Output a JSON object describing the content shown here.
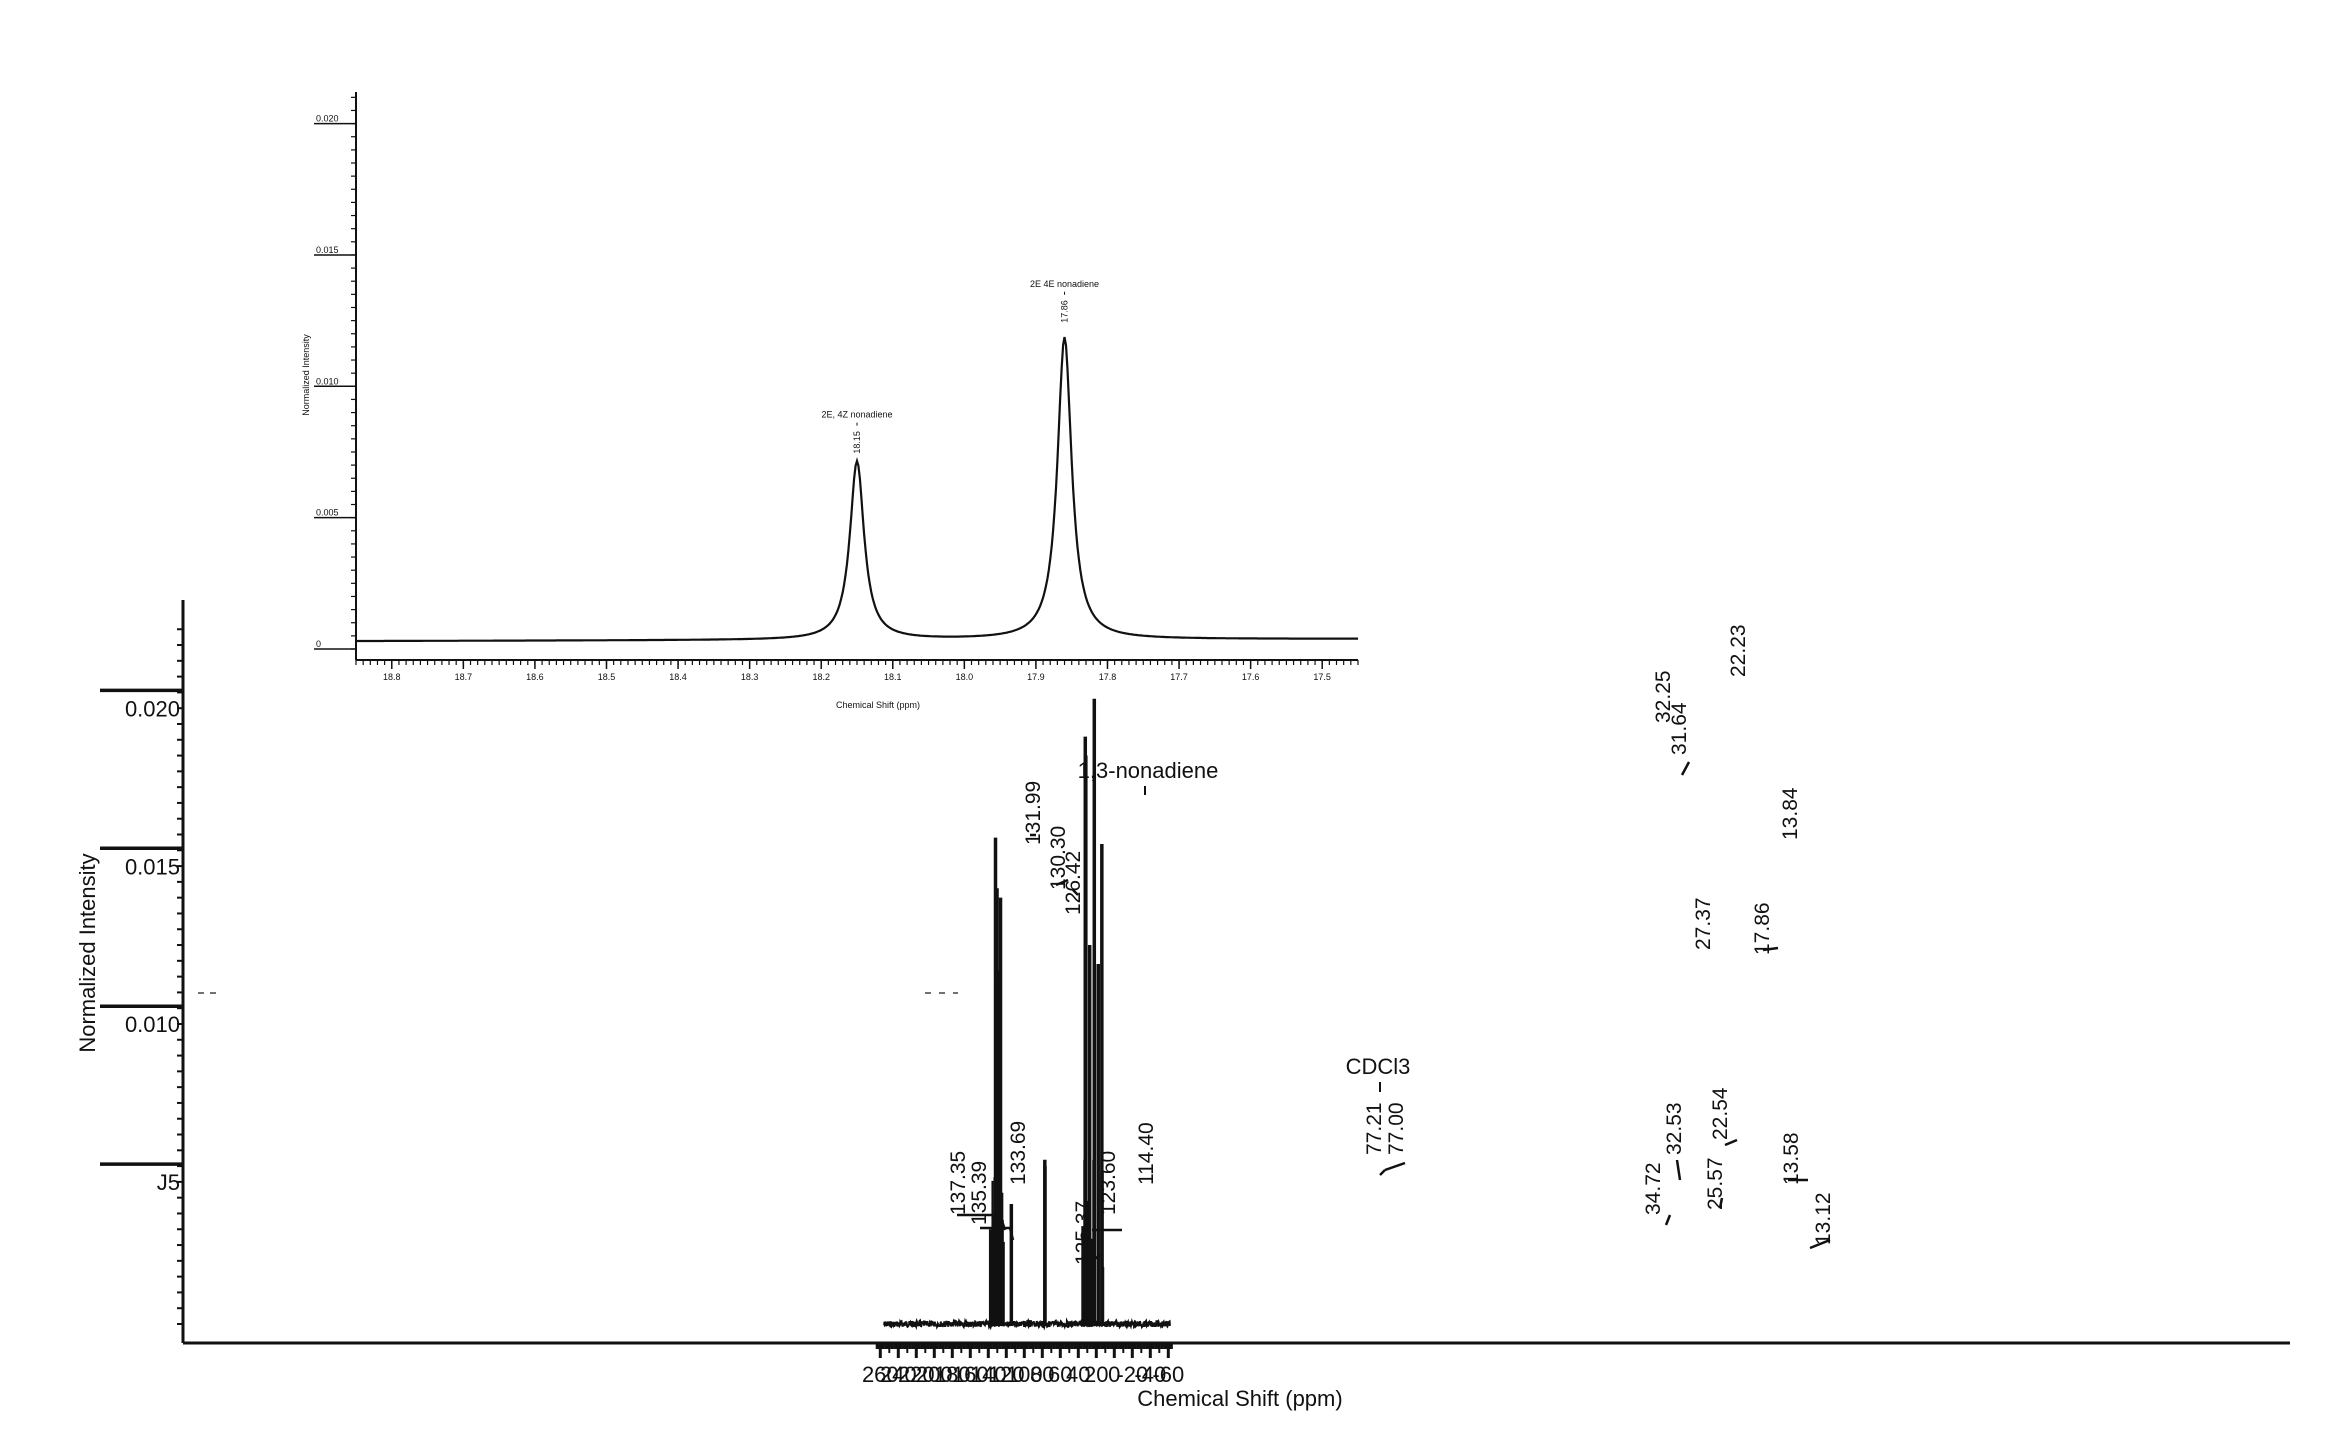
{
  "chart_data": [
    {
      "type": "line",
      "xlabel": "Chemical Shift (ppm)",
      "ylabel": "Normalized Intensity",
      "xlim": [
        265,
        -65
      ],
      "ylim": [
        0,
        0.023
      ],
      "x_ticks": [
        "260",
        "240",
        "220",
        "200",
        "180",
        "160",
        "140",
        "120",
        "100",
        "80",
        "60",
        "40",
        "20",
        "0",
        "-20",
        "-40",
        "-60"
      ],
      "y_ticks": [
        "0.020",
        "0.015",
        "0.010",
        "J5"
      ],
      "annotations": [
        {
          "text": "1,3-nonadiene",
          "x": 115
        },
        {
          "text": "CDCl3",
          "x": 77.1
        }
      ],
      "peaks": [
        {
          "x": 137.35,
          "y": 0.003
        },
        {
          "x": 135.39,
          "y": 0.0028
        },
        {
          "x": 133.69,
          "y": 0.0033
        },
        {
          "x": 131.99,
          "y": 0.0154
        },
        {
          "x": 130.3,
          "y": 0.0138
        },
        {
          "x": 129.5,
          "y": 0.0112
        },
        {
          "x": 128.3,
          "y": 0.0108
        },
        {
          "x": 127.4,
          "y": 0.0098
        },
        {
          "x": 126.42,
          "y": 0.0135
        },
        {
          "x": 125.37,
          "y": 0.0024
        },
        {
          "x": 123.6,
          "y": 0.0026
        },
        {
          "x": 114.4,
          "y": 0.0038
        },
        {
          "x": 77.21,
          "y": 0.0052
        },
        {
          "x": 77.0,
          "y": 0.005
        },
        {
          "x": 34.72,
          "y": 0.0031
        },
        {
          "x": 32.53,
          "y": 0.0052
        },
        {
          "x": 32.25,
          "y": 0.0186
        },
        {
          "x": 31.64,
          "y": 0.018
        },
        {
          "x": 28.9,
          "y": 0.0039
        },
        {
          "x": 27.37,
          "y": 0.012
        },
        {
          "x": 25.57,
          "y": 0.0027
        },
        {
          "x": 22.54,
          "y": 0.0052
        },
        {
          "x": 22.23,
          "y": 0.0198
        },
        {
          "x": 17.86,
          "y": 0.0114
        },
        {
          "x": 13.84,
          "y": 0.0152
        },
        {
          "x": 13.58,
          "y": 0.0048
        },
        {
          "x": 13.12,
          "y": 0.0018
        }
      ],
      "peak_labels": [
        "137.35",
        "135.39",
        "133.69",
        "131.99",
        "130.30",
        "126.42",
        "125.37",
        "123.60",
        "114.40",
        "77.21",
        "77.00",
        "34.72",
        "32.53",
        "32.25",
        "31.64",
        "27.37",
        "25.57",
        "22.54",
        "22.23",
        "17.86",
        "13.84",
        "13.58",
        "13.12"
      ]
    },
    {
      "type": "line",
      "xlabel": "Chemical Shift (ppm)",
      "ylabel": "Normalized Intensity",
      "xlim": [
        18.85,
        17.45
      ],
      "ylim": [
        0,
        0.0215
      ],
      "x_ticks": [
        "18.8",
        "18.7",
        "18.6",
        "18.5",
        "18.4",
        "18.3",
        "18.2",
        "18.1",
        "18.0",
        "17.9",
        "17.8",
        "17.7",
        "17.6",
        "17.5"
      ],
      "y_ticks": [
        "0.020",
        "0.015",
        "0.010",
        "0.005",
        "0"
      ],
      "peaks": [
        {
          "x": 18.15,
          "y": 0.0068,
          "label": "18.15",
          "name": "2E, 4Z nonadiene"
        },
        {
          "x": 17.86,
          "y": 0.0115,
          "label": "17.86",
          "name": "2E 4E nonadiene"
        }
      ]
    }
  ]
}
